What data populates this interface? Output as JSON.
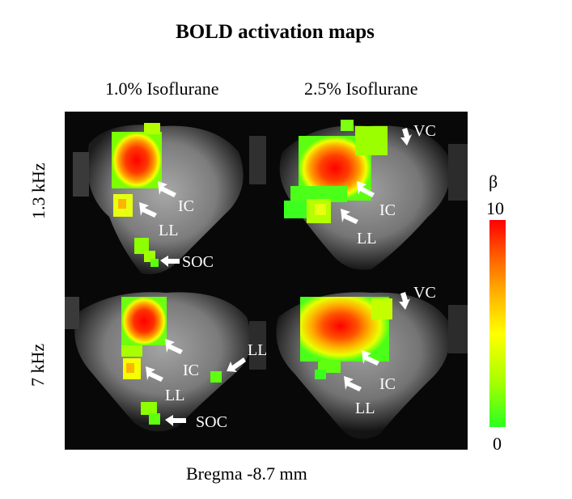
{
  "title": "BOLD activation maps",
  "columns": [
    "1.0% Isoflurane",
    "2.5% Isoflurane"
  ],
  "rows": [
    "1.3 kHz",
    "7 kHz"
  ],
  "bottom_label": "Bregma -8.7 mm",
  "colorbar": {
    "symbol": "β",
    "max_label": "10",
    "min_label": "0"
  },
  "annotations": {
    "p1": {
      "ic": "IC",
      "ll": "LL",
      "soc": "SOC"
    },
    "p2": {
      "vc": "VC",
      "ic": "IC",
      "ll": "LL"
    },
    "p3": {
      "ic": "IC",
      "ll": "LL",
      "ll2": "LL",
      "soc": "SOC"
    },
    "p4": {
      "vc": "VC",
      "ic": "IC",
      "ll": "LL"
    }
  }
}
